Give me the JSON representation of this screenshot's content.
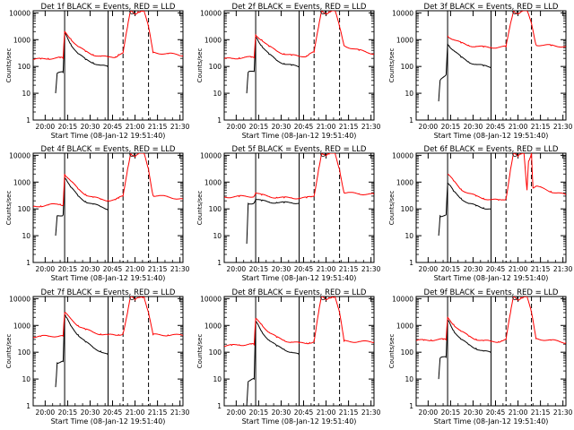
{
  "figure": {
    "xtick_labels": [
      "20:00",
      "20:15",
      "20:30",
      "20:45",
      "21:00",
      "21:15",
      "21:30"
    ],
    "ytick_labels": [
      "1",
      "10",
      "100",
      "1000",
      "10000"
    ],
    "xlabel": "Start Time (08-Jan-12 19:51:40)",
    "ylabel": "Counts/sec",
    "colors": {
      "events": "#000000",
      "lld": "#ff0000",
      "axes": "#000000"
    }
  },
  "chart_data": [
    {
      "type": "line",
      "title": "Det 1f BLACK = Events, RED = LLD",
      "detector": 1,
      "xlabel": "Start Time (08-Jan-12 19:51:40)",
      "ylabel": "Counts/sec",
      "x_range_min": [
        0,
        100
      ],
      "ylim": [
        1,
        12000
      ],
      "yscale": "log",
      "xticks_min": [
        8,
        23,
        38,
        53,
        68,
        83,
        98
      ],
      "vlines": {
        "solid_min": [
          21,
          50
        ],
        "dashed_min": [
          60,
          77
        ]
      },
      "series": [
        {
          "name": "Events",
          "color": "#000000",
          "x": [
            0,
            8,
            15,
            16,
            20,
            21,
            22,
            25,
            30,
            35,
            40,
            45,
            50
          ],
          "y": [
            null,
            null,
            10,
            55,
            60,
            1800,
            1500,
            700,
            300,
            180,
            140,
            110,
            95
          ]
        },
        {
          "name": "LLD",
          "color": "#ff0000",
          "x": [
            0,
            5,
            10,
            18,
            20,
            21,
            25,
            30,
            35,
            40,
            45,
            50,
            55,
            57,
            60,
            63,
            65,
            68,
            70,
            72,
            74,
            77,
            80,
            90,
            100
          ],
          "y": [
            180,
            190,
            200,
            210,
            200,
            2000,
            1100,
            550,
            360,
            280,
            240,
            220,
            230,
            280,
            320,
            3000,
            12000,
            9000,
            11000,
            12000,
            12000,
            3000,
            330,
            300,
            260
          ]
        }
      ]
    },
    {
      "type": "line",
      "title": "Det 2f BLACK = Events, RED = LLD",
      "detector": 2,
      "xlabel": "Start Time (08-Jan-12 19:51:40)",
      "ylabel": "Counts/sec",
      "x_range_min": [
        0,
        100
      ],
      "ylim": [
        1,
        12000
      ],
      "yscale": "log",
      "xticks_min": [
        8,
        23,
        38,
        53,
        68,
        83,
        98
      ],
      "vlines": {
        "solid_min": [
          21,
          50
        ],
        "dashed_min": [
          60,
          77
        ]
      },
      "series": [
        {
          "name": "Events",
          "color": "#000000",
          "x": [
            0,
            8,
            15,
            16,
            20,
            21,
            22,
            25,
            30,
            35,
            40,
            45,
            50
          ],
          "y": [
            null,
            null,
            10,
            60,
            65,
            1300,
            1100,
            600,
            280,
            170,
            130,
            110,
            95
          ]
        },
        {
          "name": "LLD",
          "color": "#ff0000",
          "x": [
            0,
            5,
            10,
            18,
            20,
            21,
            25,
            30,
            35,
            40,
            45,
            50,
            55,
            57,
            60,
            63,
            65,
            68,
            70,
            72,
            74,
            77,
            80,
            90,
            100
          ],
          "y": [
            190,
            200,
            210,
            220,
            210,
            1500,
            1000,
            550,
            380,
            300,
            260,
            240,
            250,
            300,
            340,
            3000,
            12000,
            9500,
            11000,
            12000,
            12000,
            3000,
            600,
            400,
            300
          ]
        }
      ]
    },
    {
      "type": "line",
      "title": "Det 3f BLACK = Events, RED = LLD",
      "detector": 3,
      "xlabel": "Start Time (08-Jan-12 19:51:40)",
      "ylabel": "Counts/sec",
      "x_range_min": [
        0,
        100
      ],
      "ylim": [
        1,
        12000
      ],
      "yscale": "log",
      "xticks_min": [
        8,
        23,
        38,
        53,
        68,
        83,
        98
      ],
      "vlines": {
        "solid_min": [
          21,
          50
        ],
        "dashed_min": [
          60,
          77
        ]
      },
      "series": [
        {
          "name": "Events",
          "color": "#000000",
          "x": [
            0,
            8,
            15,
            16,
            20,
            21,
            22,
            25,
            30,
            35,
            40,
            45,
            50
          ],
          "y": [
            null,
            null,
            5,
            30,
            50,
            700,
            600,
            400,
            220,
            150,
            120,
            105,
            95
          ]
        },
        {
          "name": "LLD",
          "color": "#ff0000",
          "x": [
            0,
            20,
            21,
            25,
            30,
            35,
            40,
            45,
            50,
            55,
            60,
            63,
            65,
            68,
            70,
            72,
            74,
            77,
            80,
            90,
            100
          ],
          "y": [
            null,
            null,
            1400,
            1000,
            750,
            620,
            560,
            530,
            520,
            520,
            540,
            4000,
            12000,
            9500,
            11000,
            12000,
            12000,
            4000,
            650,
            600,
            560
          ]
        }
      ]
    },
    {
      "type": "line",
      "title": "Det 4f BLACK = Events, RED = LLD",
      "detector": 4,
      "xlabel": "Start Time (08-Jan-12 19:51:40)",
      "ylabel": "Counts/sec",
      "x_range_min": [
        0,
        100
      ],
      "ylim": [
        1,
        12000
      ],
      "yscale": "log",
      "xticks_min": [
        8,
        23,
        38,
        53,
        68,
        83,
        98
      ],
      "vlines": {
        "solid_min": [
          21,
          50
        ],
        "dashed_min": [
          60,
          77
        ]
      },
      "series": [
        {
          "name": "Events",
          "color": "#000000",
          "x": [
            0,
            8,
            15,
            16,
            20,
            21,
            22,
            25,
            30,
            35,
            40,
            45,
            50
          ],
          "y": [
            null,
            null,
            10,
            55,
            60,
            1500,
            1300,
            650,
            300,
            190,
            150,
            120,
            100
          ]
        },
        {
          "name": "LLD",
          "color": "#ff0000",
          "x": [
            0,
            5,
            10,
            18,
            20,
            21,
            25,
            30,
            35,
            40,
            45,
            50,
            55,
            57,
            60,
            63,
            65,
            68,
            70,
            72,
            74,
            77,
            80,
            90,
            100
          ],
          "y": [
            120,
            130,
            140,
            150,
            140,
            2000,
            1100,
            550,
            350,
            270,
            230,
            210,
            220,
            250,
            300,
            3000,
            12000,
            9000,
            11000,
            12000,
            12000,
            3000,
            320,
            280,
            230
          ]
        }
      ]
    },
    {
      "type": "line",
      "title": "Det 5f BLACK = Events, RED = LLD",
      "detector": 5,
      "xlabel": "Start Time (08-Jan-12 19:51:40)",
      "ylabel": "Counts/sec",
      "x_range_min": [
        0,
        100
      ],
      "ylim": [
        1,
        12000
      ],
      "yscale": "log",
      "xticks_min": [
        8,
        23,
        38,
        53,
        68,
        83,
        98
      ],
      "vlines": {
        "solid_min": [
          21,
          50
        ],
        "dashed_min": [
          60,
          77
        ]
      },
      "series": [
        {
          "name": "Events",
          "color": "#000000",
          "x": [
            0,
            8,
            15,
            16,
            20,
            21,
            25,
            30,
            35,
            40,
            45,
            50
          ],
          "y": [
            null,
            null,
            5,
            160,
            170,
            230,
            200,
            180,
            175,
            170,
            170,
            170
          ]
        },
        {
          "name": "LLD",
          "color": "#ff0000",
          "x": [
            0,
            10,
            20,
            21,
            25,
            30,
            35,
            40,
            45,
            50,
            55,
            58,
            60,
            63,
            65,
            68,
            70,
            72,
            74,
            77,
            80,
            90,
            100
          ],
          "y": [
            280,
            290,
            300,
            400,
            330,
            290,
            270,
            260,
            260,
            255,
            260,
            280,
            300,
            3000,
            12000,
            9500,
            11000,
            12000,
            12000,
            3000,
            400,
            370,
            350
          ]
        }
      ]
    },
    {
      "type": "line",
      "title": "Det 6f BLACK = Events, RED = LLD",
      "detector": 6,
      "xlabel": "Start Time (08-Jan-12 19:51:40)",
      "ylabel": "Counts/sec",
      "x_range_min": [
        0,
        100
      ],
      "ylim": [
        1,
        12000
      ],
      "yscale": "log",
      "xticks_min": [
        8,
        23,
        38,
        53,
        68,
        83,
        98
      ],
      "vlines": {
        "solid_min": [
          21,
          50
        ],
        "dashed_min": [
          60,
          77
        ]
      },
      "series": [
        {
          "name": "Events",
          "color": "#000000",
          "x": [
            0,
            8,
            15,
            16,
            20,
            21,
            22,
            25,
            30,
            35,
            40,
            45,
            50
          ],
          "y": [
            null,
            null,
            10,
            55,
            60,
            900,
            800,
            450,
            250,
            160,
            130,
            110,
            100
          ]
        },
        {
          "name": "LLD",
          "color": "#ff0000",
          "x": [
            0,
            20,
            21,
            25,
            30,
            35,
            40,
            45,
            50,
            55,
            58,
            60,
            63,
            65,
            68,
            70,
            72,
            74,
            75,
            77,
            78,
            80,
            90,
            100
          ],
          "y": [
            null,
            null,
            2000,
            1100,
            550,
            380,
            300,
            250,
            220,
            210,
            220,
            240,
            3000,
            12000,
            9000,
            11000,
            12000,
            500,
            6000,
            12000,
            600,
            700,
            450,
            330
          ]
        }
      ]
    },
    {
      "type": "line",
      "title": "Det 7f BLACK = Events, RED = LLD",
      "detector": 7,
      "xlabel": "Start Time (08-Jan-12 19:51:40)",
      "ylabel": "Counts/sec",
      "x_range_min": [
        0,
        100
      ],
      "ylim": [
        1,
        12000
      ],
      "yscale": "log",
      "xticks_min": [
        8,
        23,
        38,
        53,
        68,
        83,
        98
      ],
      "vlines": {
        "solid_min": [
          21,
          50
        ],
        "dashed_min": [
          60,
          77
        ]
      },
      "series": [
        {
          "name": "Events",
          "color": "#000000",
          "x": [
            0,
            8,
            15,
            16,
            20,
            21,
            22,
            25,
            30,
            35,
            40,
            45,
            50
          ],
          "y": [
            null,
            null,
            5,
            40,
            45,
            2500,
            2000,
            1000,
            450,
            240,
            150,
            110,
            80
          ]
        },
        {
          "name": "LLD",
          "color": "#ff0000",
          "x": [
            0,
            5,
            10,
            18,
            20,
            21,
            25,
            30,
            35,
            40,
            45,
            50,
            55,
            57,
            60,
            63,
            65,
            68,
            70,
            72,
            74,
            77,
            80,
            90,
            100
          ],
          "y": [
            380,
            390,
            400,
            410,
            400,
            3000,
            1800,
            1000,
            700,
            560,
            480,
            440,
            430,
            450,
            500,
            3000,
            12000,
            9000,
            11000,
            12000,
            12000,
            3000,
            450,
            440,
            430
          ]
        }
      ]
    },
    {
      "type": "line",
      "title": "Det 8f BLACK = Events, RED = LLD",
      "detector": 8,
      "xlabel": "Start Time (08-Jan-12 19:51:40)",
      "ylabel": "Counts/sec",
      "x_range_min": [
        0,
        100
      ],
      "ylim": [
        1,
        12000
      ],
      "yscale": "log",
      "xticks_min": [
        8,
        23,
        38,
        53,
        68,
        83,
        98
      ],
      "vlines": {
        "solid_min": [
          21,
          50
        ],
        "dashed_min": [
          60,
          77
        ]
      },
      "series": [
        {
          "name": "Events",
          "color": "#000000",
          "x": [
            0,
            8,
            15,
            16,
            20,
            21,
            22,
            25,
            30,
            35,
            40,
            45,
            50
          ],
          "y": [
            null,
            null,
            1,
            8,
            10,
            1400,
            1200,
            600,
            280,
            170,
            130,
            100,
            80
          ]
        },
        {
          "name": "LLD",
          "color": "#ff0000",
          "x": [
            0,
            5,
            10,
            18,
            20,
            21,
            25,
            30,
            35,
            40,
            45,
            50,
            55,
            57,
            60,
            63,
            65,
            68,
            70,
            72,
            74,
            77,
            80,
            90,
            100
          ],
          "y": [
            170,
            180,
            190,
            200,
            190,
            1800,
            1100,
            550,
            360,
            280,
            240,
            220,
            220,
            230,
            250,
            3000,
            12000,
            9000,
            11000,
            12000,
            12000,
            3000,
            260,
            250,
            240
          ]
        }
      ]
    },
    {
      "type": "line",
      "title": "Det 9f BLACK = Events, RED = LLD",
      "detector": 9,
      "xlabel": "Start Time (08-Jan-12 19:51:40)",
      "ylabel": "Counts/sec",
      "x_range_min": [
        0,
        100
      ],
      "ylim": [
        1,
        12000
      ],
      "yscale": "log",
      "xticks_min": [
        8,
        23,
        38,
        53,
        68,
        83,
        98
      ],
      "vlines": {
        "solid_min": [
          21,
          50
        ],
        "dashed_min": [
          60,
          77
        ]
      },
      "series": [
        {
          "name": "Events",
          "color": "#000000",
          "x": [
            0,
            8,
            15,
            16,
            20,
            21,
            22,
            25,
            30,
            35,
            40,
            45,
            50
          ],
          "y": [
            null,
            null,
            10,
            60,
            65,
            1600,
            1400,
            650,
            300,
            190,
            140,
            110,
            95
          ]
        },
        {
          "name": "LLD",
          "color": "#ff0000",
          "x": [
            0,
            5,
            10,
            18,
            20,
            21,
            25,
            30,
            35,
            40,
            45,
            50,
            55,
            57,
            60,
            63,
            65,
            68,
            70,
            72,
            74,
            77,
            80,
            90,
            100
          ],
          "y": [
            270,
            280,
            290,
            300,
            290,
            2000,
            1100,
            600,
            400,
            310,
            270,
            250,
            250,
            270,
            300,
            3000,
            12000,
            9000,
            11000,
            12000,
            12000,
            3000,
            320,
            280,
            230
          ]
        }
      ]
    }
  ]
}
